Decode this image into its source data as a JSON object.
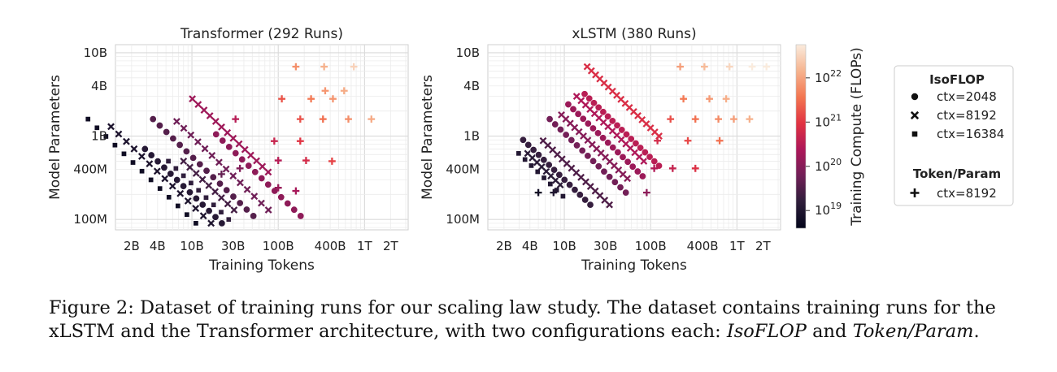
{
  "figure": {
    "caption": {
      "label": "Figure 2:",
      "text_1": "Dataset of training runs for our scaling law study. The dataset contains training runs for the xLSTM and the Transformer architecture, with two configurations each: ",
      "em_1": "IsoFLOP",
      "text_2": " and ",
      "em_2": "Token/Param",
      "text_3": "."
    },
    "colorbar": {
      "label": "Training Compute (FLOPs)",
      "ticks": [
        "10^19",
        "10^20",
        "10^21",
        "10^22"
      ],
      "log_range": [
        18.6,
        22.75
      ],
      "colormap": "rocket",
      "stops": [
        "#03051a",
        "#2e1e3b",
        "#701f57",
        "#ad1759",
        "#e13342",
        "#f37651",
        "#f6b48f",
        "#faebdd"
      ]
    },
    "legend": {
      "groups": [
        {
          "title": "IsoFLOP",
          "items": [
            {
              "marker": "circle",
              "label": "ctx=2048"
            },
            {
              "marker": "x",
              "label": "ctx=8192"
            },
            {
              "marker": "square",
              "label": "ctx=16384"
            }
          ]
        },
        {
          "title": "Token/Param",
          "items": [
            {
              "marker": "plus",
              "label": "ctx=8192"
            }
          ]
        }
      ]
    }
  },
  "chart_data": [
    {
      "type": "scatter",
      "title": "Transformer (292 Runs)",
      "xlabel": "Training Tokens",
      "ylabel": "Model Parameters",
      "xscale": "log",
      "yscale": "log",
      "xlim": [
        1300000000.0,
        3200000000000.0
      ],
      "ylim": [
        75000000.0,
        12500000000.0
      ],
      "grid": true,
      "xticks": [
        {
          "v": 2000000000.0,
          "l": "2B"
        },
        {
          "v": 4000000000.0,
          "l": "4B"
        },
        {
          "v": 10000000000.0,
          "l": "10B"
        },
        {
          "v": 30000000000.0,
          "l": "30B"
        },
        {
          "v": 100000000000.0,
          "l": "100B"
        },
        {
          "v": 400000000000.0,
          "l": "400B"
        },
        {
          "v": 1000000000000.0,
          "l": "1T"
        },
        {
          "v": 2000000000000.0,
          "l": "2T"
        }
      ],
      "yticks": [
        {
          "v": 100000000.0,
          "l": "100M"
        },
        {
          "v": 400000000.0,
          "l": "400M"
        },
        {
          "v": 1000000000.0,
          "l": "1B"
        },
        {
          "v": 4000000000.0,
          "l": "4B"
        },
        {
          "v": 10000000000.0,
          "l": "10B"
        }
      ],
      "isoflop_groups": [
        {
          "marker": "square",
          "flops": 6e+18,
          "n_start": 1600000000.0,
          "n_end": 90000000.0,
          "count": 13
        },
        {
          "marker": "x",
          "flops": 9e+18,
          "n_start": 1300000000.0,
          "n_end": 90000000.0,
          "count": 14
        },
        {
          "marker": "circle",
          "flops": 1.2e+19,
          "n_start": 700000000.0,
          "n_end": 90000000.0,
          "count": 13
        },
        {
          "marker": "square",
          "flops": 1.6e+19,
          "n_start": 500000000.0,
          "n_end": 100000000.0,
          "count": 9
        },
        {
          "marker": "x",
          "flops": 2.4e+19,
          "n_start": 500000000.0,
          "n_end": 130000000.0,
          "count": 9
        },
        {
          "marker": "circle",
          "flops": 3.4e+19,
          "n_start": 1600000000.0,
          "n_end": 110000000.0,
          "count": 16
        },
        {
          "marker": "x",
          "flops": 6e+19,
          "n_start": 1500000000.0,
          "n_end": 130000000.0,
          "count": 14
        },
        {
          "marker": "circle",
          "flops": 1.2e+20,
          "n_start": 1050000000.0,
          "n_end": 110000000.0,
          "count": 14
        },
        {
          "marker": "x",
          "flops": 1.7e+20,
          "n_start": 2800000000.0,
          "n_end": 370000000.0,
          "count": 14
        }
      ],
      "token_param_runs": [
        {
          "x": 22000000000.0,
          "y": 350000000.0
        },
        {
          "x": 32000000000.0,
          "y": 1600000000.0
        },
        {
          "x": 36000000000.0,
          "y": 410000000.0
        },
        {
          "x": 90000000000.0,
          "y": 870000000.0
        },
        {
          "x": 100000000000.0,
          "y": 510000000.0
        },
        {
          "x": 100000000000.0,
          "y": 240000000.0
        },
        {
          "x": 110000000000.0,
          "y": 2800000000.0
        },
        {
          "x": 160000000000.0,
          "y": 220000000.0
        },
        {
          "x": 180000000000.0,
          "y": 870000000.0
        },
        {
          "x": 180000000000.0,
          "y": 1600000000.0
        },
        {
          "x": 210000000000.0,
          "y": 510000000.0
        },
        {
          "x": 240000000000.0,
          "y": 2800000000.0
        },
        {
          "x": 330000000000.0,
          "y": 1600000000.0
        },
        {
          "x": 350000000000.0,
          "y": 3500000000.0
        },
        {
          "x": 420000000000.0,
          "y": 500000000.0
        },
        {
          "x": 430000000000.0,
          "y": 2800000000.0
        },
        {
          "x": 650000000000.0,
          "y": 1600000000.0
        },
        {
          "x": 160000000000.0,
          "y": 6800000000.0
        },
        {
          "x": 340000000000.0,
          "y": 6800000000.0
        },
        {
          "x": 750000000000.0,
          "y": 6800000000.0
        },
        {
          "x": 1200000000000.0,
          "y": 1600000000.0
        },
        {
          "x": 580000000000.0,
          "y": 3500000000.0
        }
      ]
    },
    {
      "type": "scatter",
      "title": "xLSTM (380 Runs)",
      "xlabel": "Training Tokens",
      "ylabel": "Model Parameters",
      "xscale": "log",
      "yscale": "log",
      "xlim": [
        1300000000.0,
        3200000000000.0
      ],
      "ylim": [
        75000000.0,
        12500000000.0
      ],
      "grid": true,
      "xticks": [
        {
          "v": 2000000000.0,
          "l": "2B"
        },
        {
          "v": 4000000000.0,
          "l": "4B"
        },
        {
          "v": 10000000000.0,
          "l": "10B"
        },
        {
          "v": 30000000000.0,
          "l": "30B"
        },
        {
          "v": 100000000000.0,
          "l": "100B"
        },
        {
          "v": 400000000000.0,
          "l": "400B"
        },
        {
          "v": 1000000000000.0,
          "l": "1T"
        },
        {
          "v": 2000000000000.0,
          "l": "2T"
        }
      ],
      "yticks": [
        {
          "v": 100000000.0,
          "l": "100M"
        },
        {
          "v": 400000000.0,
          "l": "400M"
        },
        {
          "v": 1000000000.0,
          "l": "1B"
        },
        {
          "v": 4000000000.0,
          "l": "4B"
        },
        {
          "v": 10000000000.0,
          "l": "10B"
        }
      ],
      "isoflop_groups": [
        {
          "marker": "square",
          "flops": 1.1e+19,
          "n_start": 620000000.0,
          "n_end": 190000000.0,
          "count": 8
        },
        {
          "marker": "x",
          "flops": 1.4e+19,
          "n_start": 620000000.0,
          "n_end": 260000000.0,
          "count": 8
        },
        {
          "marker": "circle",
          "flops": 1.8e+19,
          "n_start": 900000000.0,
          "n_end": 150000000.0,
          "count": 14
        },
        {
          "marker": "x",
          "flops": 3e+19,
          "n_start": 880000000.0,
          "n_end": 150000000.0,
          "count": 15
        },
        {
          "marker": "circle",
          "flops": 6.5e+19,
          "n_start": 1600000000.0,
          "n_end": 210000000.0,
          "count": 15
        },
        {
          "marker": "x",
          "flops": 1e+20,
          "n_start": 1800000000.0,
          "n_end": 310000000.0,
          "count": 16
        },
        {
          "marker": "circle",
          "flops": 1.6e+20,
          "n_start": 2400000000.0,
          "n_end": 330000000.0,
          "count": 16
        },
        {
          "marker": "x",
          "flops": 2.5e+20,
          "n_start": 3000000000.0,
          "n_end": 500000000.0,
          "count": 16
        },
        {
          "marker": "circle",
          "flops": 3.3e+20,
          "n_start": 3200000000.0,
          "n_end": 440000000.0,
          "count": 17
        },
        {
          "marker": "x",
          "flops": 7.5e+20,
          "n_start": 6800000000.0,
          "n_end": 1000000000.0,
          "count": 18
        }
      ],
      "token_param_runs": [
        {
          "x": 5000000000.0,
          "y": 210000000.0
        },
        {
          "x": 7500000000.0,
          "y": 210000000.0
        },
        {
          "x": 90000000000.0,
          "y": 210000000.0
        },
        {
          "x": 110000000000.0,
          "y": 410000000.0
        },
        {
          "x": 120000000000.0,
          "y": 880000000.0
        },
        {
          "x": 170000000000.0,
          "y": 1600000000.0
        },
        {
          "x": 180000000000.0,
          "y": 410000000.0
        },
        {
          "x": 240000000000.0,
          "y": 2800000000.0
        },
        {
          "x": 270000000000.0,
          "y": 880000000.0
        },
        {
          "x": 330000000000.0,
          "y": 1600000000.0
        },
        {
          "x": 330000000000.0,
          "y": 410000000.0
        },
        {
          "x": 420000000000.0,
          "y": 6800000000.0
        },
        {
          "x": 480000000000.0,
          "y": 2800000000.0
        },
        {
          "x": 610000000000.0,
          "y": 1600000000.0
        },
        {
          "x": 630000000000.0,
          "y": 880000000.0
        },
        {
          "x": 750000000000.0,
          "y": 2800000000.0
        },
        {
          "x": 820000000000.0,
          "y": 6800000000.0
        },
        {
          "x": 920000000000.0,
          "y": 1600000000.0
        },
        {
          "x": 1500000000000.0,
          "y": 6800000000.0
        },
        {
          "x": 2200000000000.0,
          "y": 6800000000.0
        },
        {
          "x": 1400000000000.0,
          "y": 1600000000.0
        },
        {
          "x": 220000000000.0,
          "y": 6800000000.0
        }
      ]
    }
  ]
}
